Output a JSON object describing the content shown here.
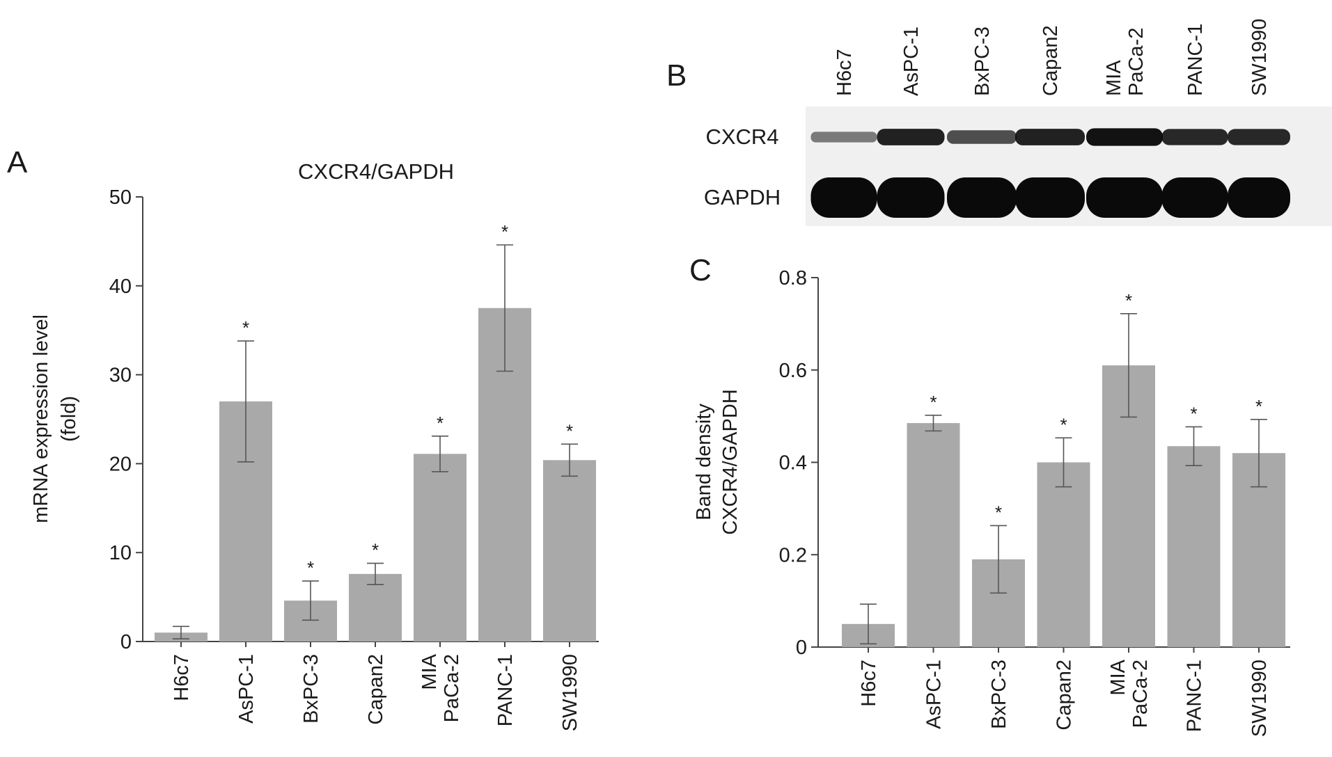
{
  "panels": {
    "a": "A",
    "b": "B",
    "c": "C"
  },
  "colors": {
    "bar": "#a9a9a9",
    "axis": "#444444",
    "text": "#1a1a1a",
    "blot_background": "#f0f0f0",
    "band": "#0a0a0a"
  },
  "chart_data": [
    {
      "type": "bar",
      "panel": "A",
      "title": "CXCR4/GAPDH",
      "xlabel": "",
      "ylabel": "mRNA expression level (fold)",
      "ylabel_lines": [
        "mRNA expression level",
        "(fold)"
      ],
      "categories": [
        "H6c7",
        "AsPC-1",
        "BxPC-3",
        "Capan2",
        "MIA PaCa-2",
        "PANC-1",
        "SW1990"
      ],
      "category_lines": [
        [
          "H6c7"
        ],
        [
          "AsPC-1"
        ],
        [
          "BxPC-3"
        ],
        [
          "Capan2"
        ],
        [
          "MIA",
          "PaCa-2"
        ],
        [
          "PANC-1"
        ],
        [
          "SW1990"
        ]
      ],
      "values": [
        1.0,
        27.0,
        4.6,
        7.6,
        21.1,
        37.5,
        20.4
      ],
      "errors": [
        0.7,
        6.8,
        2.2,
        1.2,
        2.0,
        7.1,
        1.8
      ],
      "significance": [
        "",
        "*",
        "*",
        "*",
        "*",
        "*",
        "*"
      ],
      "ylim": [
        0,
        50
      ],
      "yticks": [
        0,
        10,
        20,
        30,
        40,
        50
      ],
      "ytick_labels": [
        "0",
        "10",
        "20",
        "30",
        "40",
        "50"
      ],
      "grid": false,
      "legend": "none"
    },
    {
      "type": "bar",
      "panel": "C",
      "title": "",
      "xlabel": "",
      "ylabel": "Band density CXCR4/GAPDH",
      "ylabel_lines": [
        "Band density",
        "CXCR4/GAPDH"
      ],
      "categories": [
        "H6c7",
        "AsPC-1",
        "BxPC-3",
        "Capan2",
        "MIA PaCa-2",
        "PANC-1",
        "SW1990"
      ],
      "category_lines": [
        [
          "H6c7"
        ],
        [
          "AsPC-1"
        ],
        [
          "BxPC-3"
        ],
        [
          "Capan2"
        ],
        [
          "MIA",
          "PaCa-2"
        ],
        [
          "PANC-1"
        ],
        [
          "SW1990"
        ]
      ],
      "values": [
        0.05,
        0.485,
        0.19,
        0.4,
        0.61,
        0.435,
        0.42
      ],
      "errors": [
        0.043,
        0.017,
        0.073,
        0.053,
        0.112,
        0.042,
        0.073
      ],
      "significance": [
        "",
        "*",
        "*",
        "*",
        "*",
        "*",
        "*"
      ],
      "ylim": [
        0,
        0.8
      ],
      "yticks": [
        0,
        0.2,
        0.4,
        0.6,
        0.8
      ],
      "ytick_labels": [
        "0",
        "0.2",
        "0.4",
        "0.6",
        "0.8"
      ],
      "grid": false,
      "legend": "none"
    }
  ],
  "blot": {
    "lanes": [
      "H6c7",
      "AsPC-1",
      "BxPC-3",
      "Capan2",
      "MIA PaCa-2",
      "PANC-1",
      "SW1990"
    ],
    "lane_lines": [
      [
        "H6c7"
      ],
      [
        "AsPC-1"
      ],
      [
        "BxPC-3"
      ],
      [
        "Capan2"
      ],
      [
        "MIA",
        "PaCa-2"
      ],
      [
        "PANC-1"
      ],
      [
        "SW1990"
      ]
    ],
    "rows": [
      {
        "label": "CXCR4",
        "intensity": [
          0.25,
          0.85,
          0.55,
          0.85,
          0.95,
          0.8,
          0.8
        ]
      },
      {
        "label": "GAPDH",
        "intensity": [
          1,
          1,
          1,
          1,
          1,
          1,
          1
        ]
      }
    ]
  }
}
